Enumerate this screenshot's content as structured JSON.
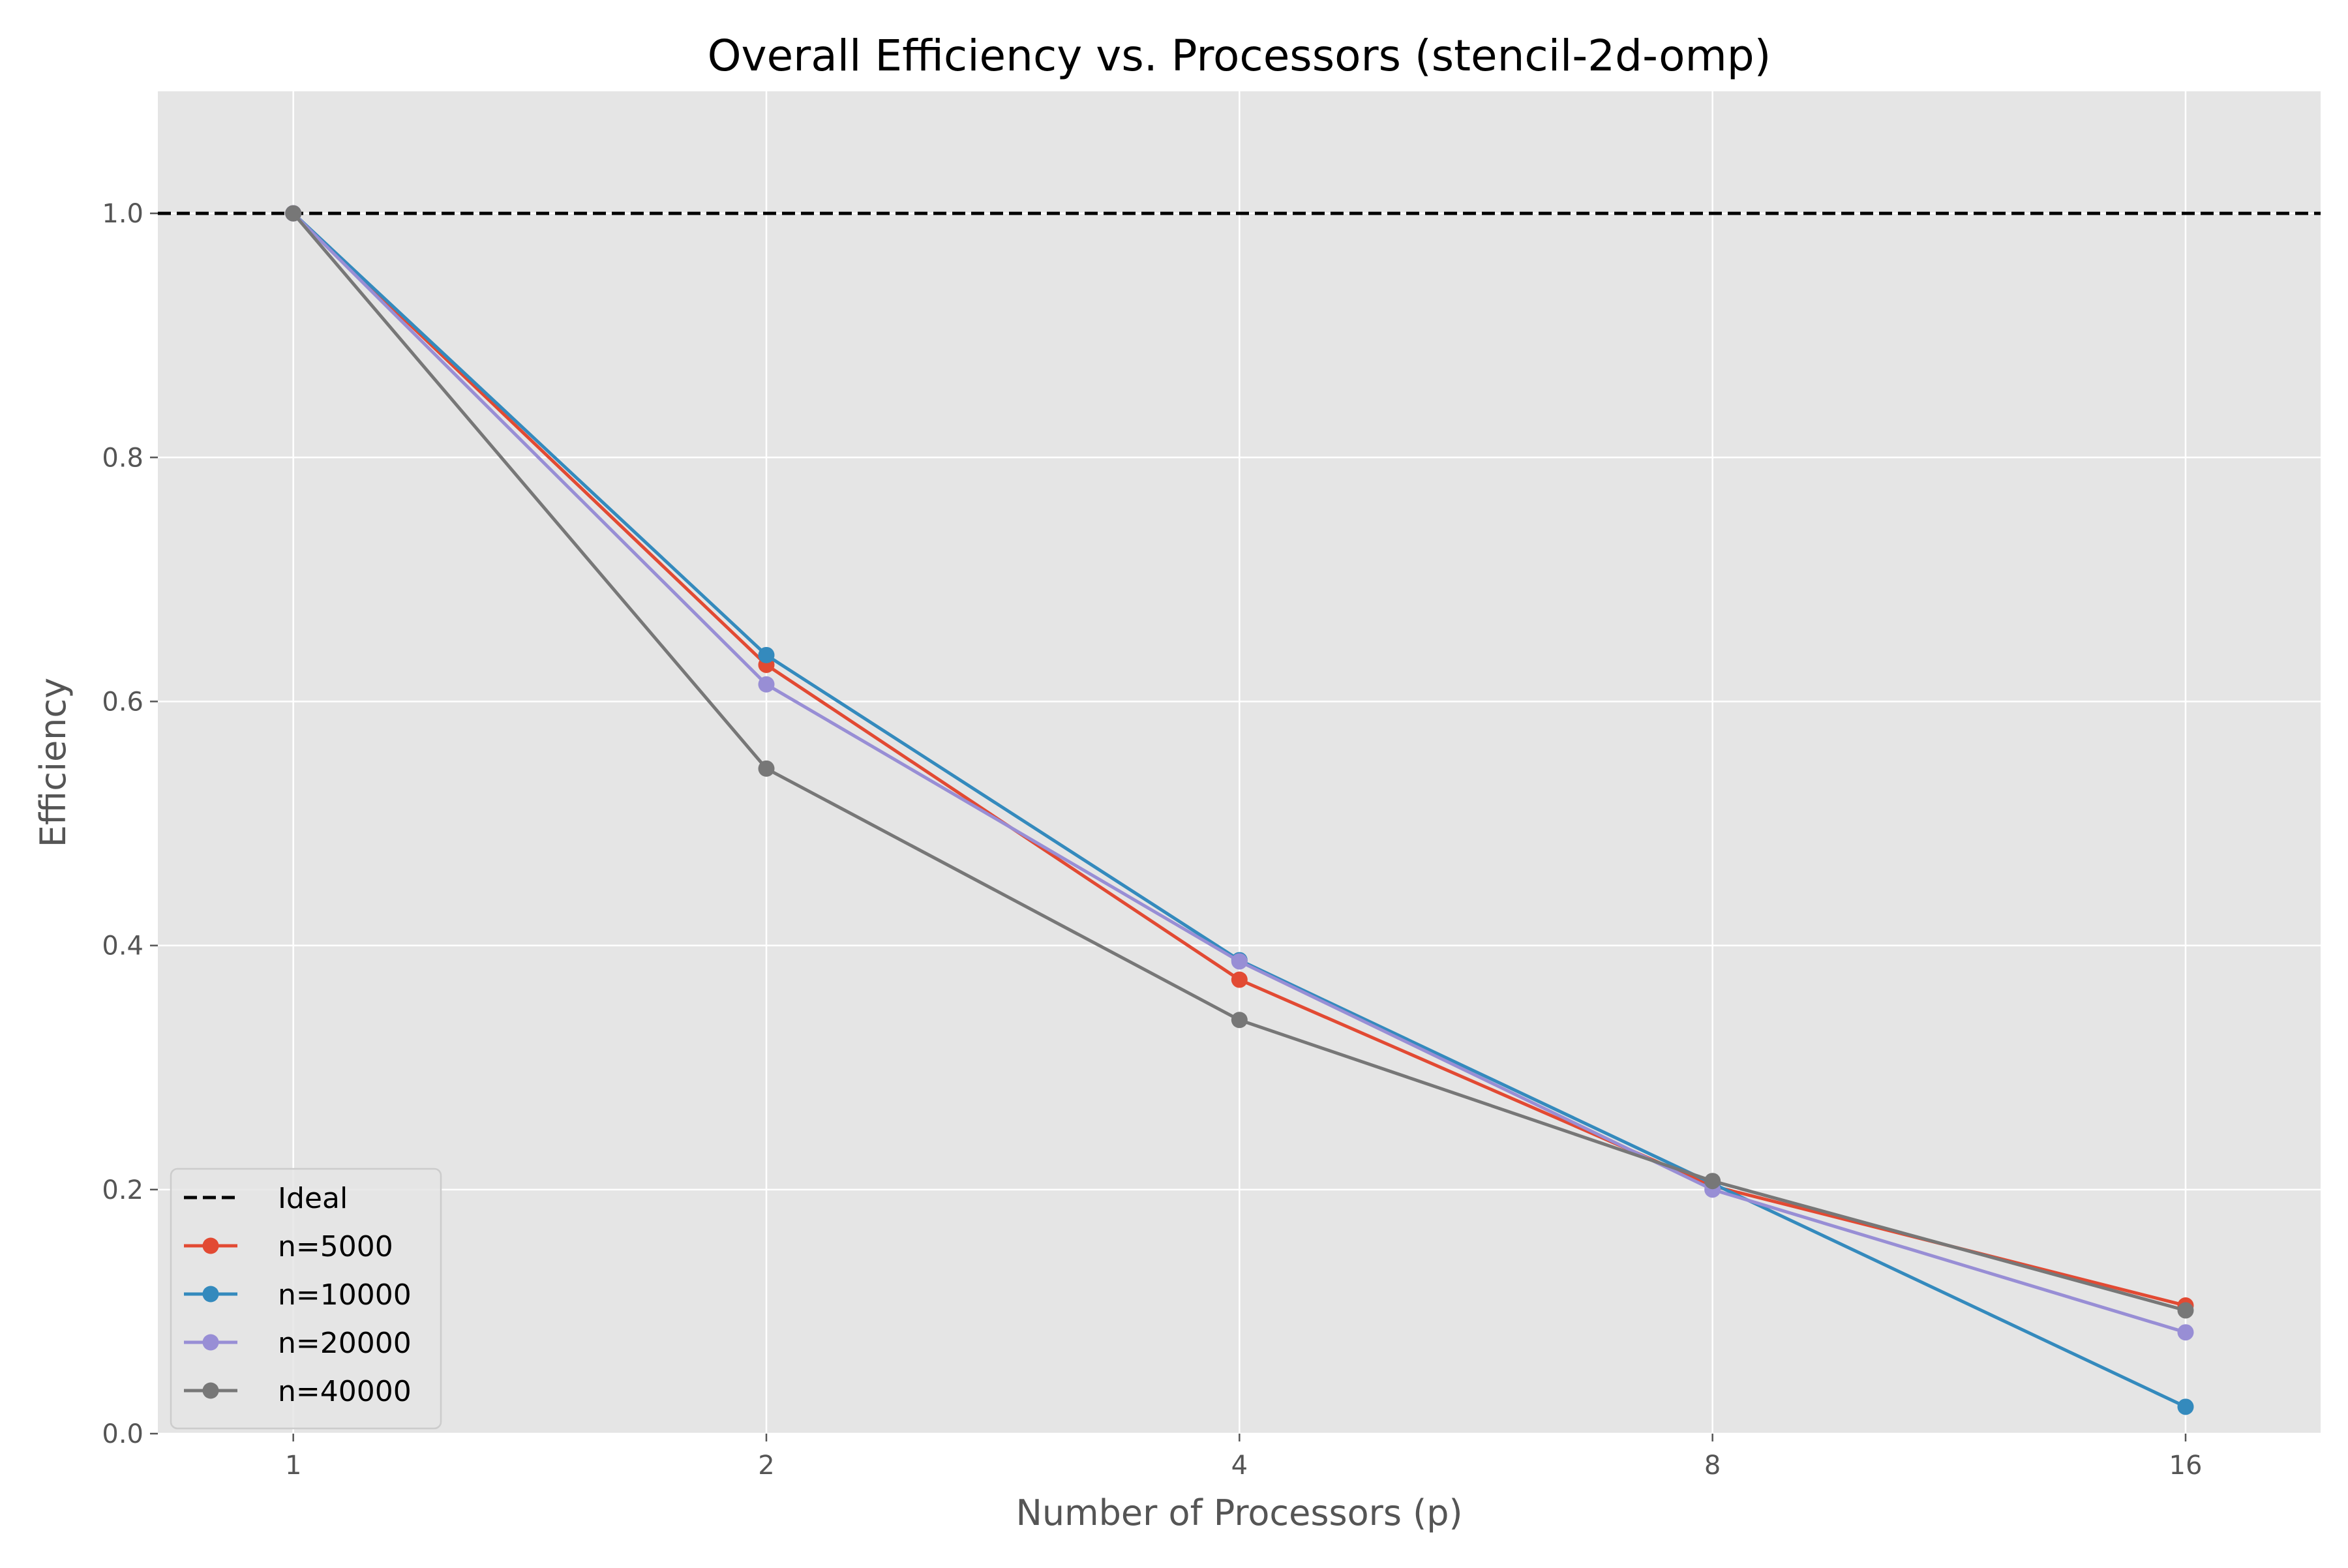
{
  "chart_data": {
    "type": "line",
    "title": "Overall Efficiency vs. Processors (stencil-2d-omp)",
    "xlabel": "Number of Processors (p)",
    "ylabel": "Efficiency",
    "x_scale": "log2",
    "x": [
      1,
      2,
      4,
      8,
      16
    ],
    "x_tick_labels": [
      "1",
      "2",
      "4",
      "8",
      "16"
    ],
    "y_ticks": [
      0.0,
      0.2,
      0.4,
      0.6,
      0.8,
      1.0
    ],
    "y_tick_labels": [
      "0.0",
      "0.2",
      "0.4",
      "0.6",
      "0.8",
      "1.0"
    ],
    "xlim": [
      0.82,
      19.5
    ],
    "ylim": [
      0.0,
      1.1
    ],
    "grid": true,
    "legend_position": "lower-left",
    "background_color": "#e5e5e5",
    "ideal": {
      "name": "Ideal",
      "value": 1.0,
      "color": "#000000",
      "style": "dashed"
    },
    "series": [
      {
        "name": "n=5000",
        "color": "#e24a33",
        "values": [
          1.0,
          0.63,
          0.372,
          0.203,
          0.105
        ]
      },
      {
        "name": "n=10000",
        "color": "#348abd",
        "values": [
          1.0,
          0.638,
          0.388,
          0.205,
          0.022
        ]
      },
      {
        "name": "n=20000",
        "color": "#988ed5",
        "values": [
          1.0,
          0.614,
          0.387,
          0.2,
          0.083
        ]
      },
      {
        "name": "n=40000",
        "color": "#777777",
        "values": [
          1.0,
          0.545,
          0.339,
          0.207,
          0.101
        ]
      }
    ]
  }
}
